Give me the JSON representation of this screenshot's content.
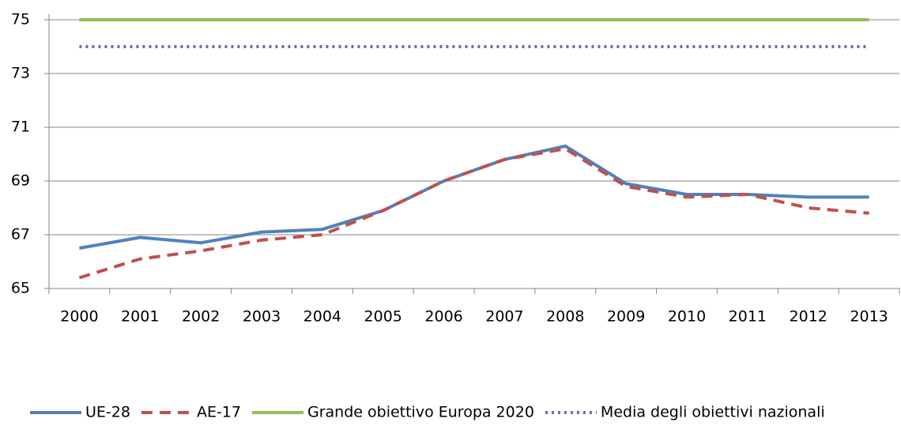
{
  "chart_data": {
    "type": "line",
    "categories": [
      "2000",
      "2001",
      "2002",
      "2003",
      "2004",
      "2005",
      "2006",
      "2007",
      "2008",
      "2009",
      "2010",
      "2011",
      "2012",
      "2013"
    ],
    "series": [
      {
        "name": "UE-28",
        "color": "#4f81bd",
        "style": "solid",
        "width": 4,
        "values": [
          66.5,
          66.9,
          66.7,
          67.1,
          67.2,
          67.9,
          69.0,
          69.8,
          70.3,
          68.9,
          68.5,
          68.5,
          68.4,
          68.4
        ]
      },
      {
        "name": "AE-17",
        "color": "#c0504d",
        "style": "dashed",
        "width": 4,
        "values": [
          65.4,
          66.1,
          66.4,
          66.8,
          67.0,
          67.9,
          69.0,
          69.8,
          70.2,
          68.8,
          68.4,
          68.5,
          68.0,
          67.8
        ]
      },
      {
        "name": "Grande obiettivo Europa 2020",
        "color": "#9bbb59",
        "style": "solid",
        "width": 4,
        "values": [
          75,
          75,
          75,
          75,
          75,
          75,
          75,
          75,
          75,
          75,
          75,
          75,
          75,
          75
        ]
      },
      {
        "name": "Media degli obiettivi nazionali",
        "color": "#8064a2",
        "style": "dotted",
        "width": 4,
        "values": [
          74,
          74,
          74,
          74,
          74,
          74,
          74,
          74,
          74,
          74,
          74,
          74,
          74,
          74
        ]
      }
    ],
    "ylim": [
      65,
      75
    ],
    "yticks": [
      65,
      67,
      69,
      71,
      73,
      75
    ],
    "grid": true,
    "legend": "bottom"
  }
}
